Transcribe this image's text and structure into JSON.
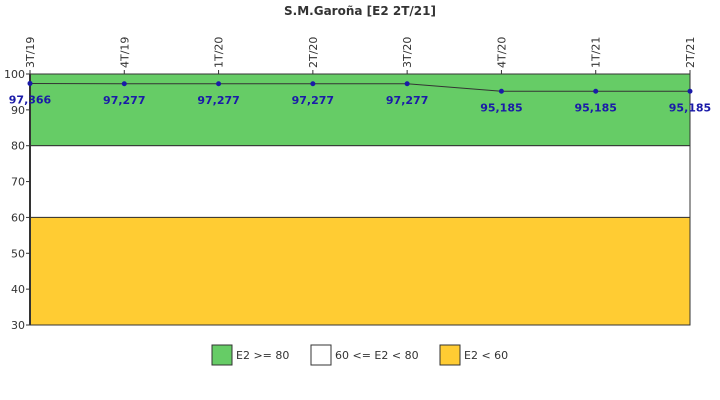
{
  "chart_data": {
    "type": "line",
    "title": "S.M.Garoña [E2 2T/21]",
    "categories": [
      "3T/19",
      "4T/19",
      "1T/20",
      "2T/20",
      "3T/20",
      "4T/20",
      "1T/21",
      "2T/21"
    ],
    "values": [
      97.366,
      97.277,
      97.277,
      97.277,
      97.277,
      95.185,
      95.185,
      95.185
    ],
    "data_labels": [
      "97,366",
      "97,277",
      "97,277",
      "97,277",
      "97,277",
      "95,185",
      "95,185",
      "95,185"
    ],
    "ylim": [
      30,
      100
    ],
    "yticks": [
      30,
      40,
      50,
      60,
      70,
      80,
      90,
      100
    ],
    "ytick_labels": [
      "30",
      "40",
      "50",
      "60",
      "70",
      "80",
      "90",
      "100"
    ],
    "xlabel": "",
    "ylabel": "",
    "grid": false,
    "legend_position": "bottom",
    "line_color": "#333333",
    "marker_color": "#1a1aa8",
    "bands": [
      {
        "from": 80,
        "to": 100,
        "color": "#66cc66",
        "label": "E2 >= 80"
      },
      {
        "from": 60,
        "to": 80,
        "color": "#ffffff",
        "label": "60 <= E2 < 80"
      },
      {
        "from": 30,
        "to": 60,
        "color": "#ffcc33",
        "label": "E2 < 60"
      }
    ]
  }
}
